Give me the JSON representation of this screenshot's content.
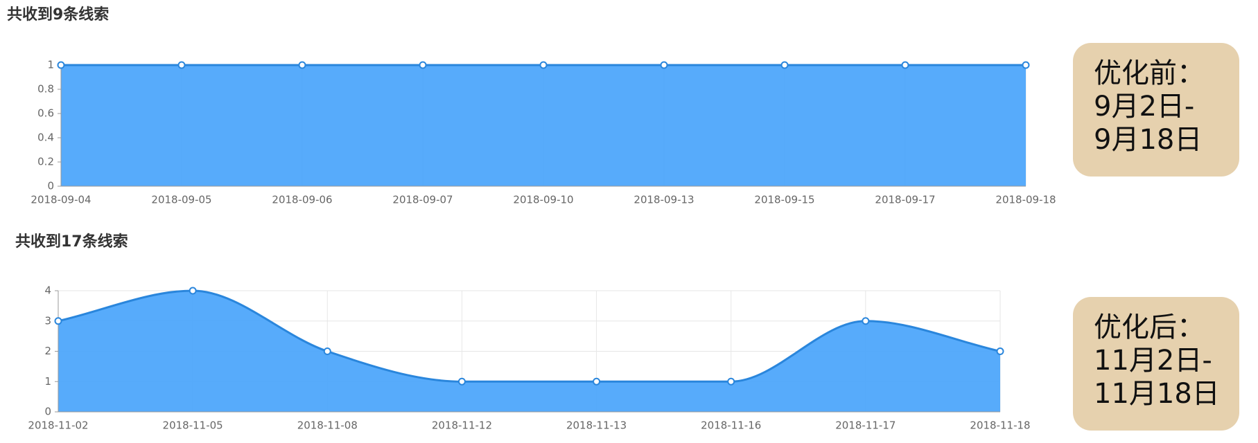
{
  "chart_data": [
    {
      "type": "area",
      "title": "共收到9条线索",
      "categories": [
        "2018-09-04",
        "2018-09-05",
        "2018-09-06",
        "2018-09-07",
        "2018-09-10",
        "2018-09-13",
        "2018-09-15",
        "2018-09-17",
        "2018-09-18"
      ],
      "values": [
        1,
        1,
        1,
        1,
        1,
        1,
        1,
        1,
        1
      ],
      "ylim": [
        0,
        1
      ],
      "yticks": [
        0,
        0.2,
        0.4,
        0.6,
        0.8,
        1
      ],
      "color": "#4ea6fb",
      "line_color": "#2a86dc",
      "smooth": true,
      "grid": "vertical"
    },
    {
      "type": "area",
      "title": "共收到17条线索",
      "categories": [
        "2018-11-02",
        "2018-11-05",
        "2018-11-08",
        "2018-11-12",
        "2018-11-13",
        "2018-11-16",
        "2018-11-17",
        "2018-11-18"
      ],
      "values": [
        3,
        4,
        2,
        1,
        1,
        1,
        3,
        2
      ],
      "ylim": [
        0,
        4
      ],
      "yticks": [
        0,
        1,
        2,
        3,
        4
      ],
      "color": "#4ea6fb",
      "line_color": "#2a86dc",
      "smooth": true,
      "grid": "both"
    }
  ],
  "notes": [
    {
      "lines": [
        "优化前：",
        "9月2日-",
        "9月18日"
      ]
    },
    {
      "lines": [
        "优化后：",
        "11月2日-",
        "11月18日"
      ]
    }
  ]
}
